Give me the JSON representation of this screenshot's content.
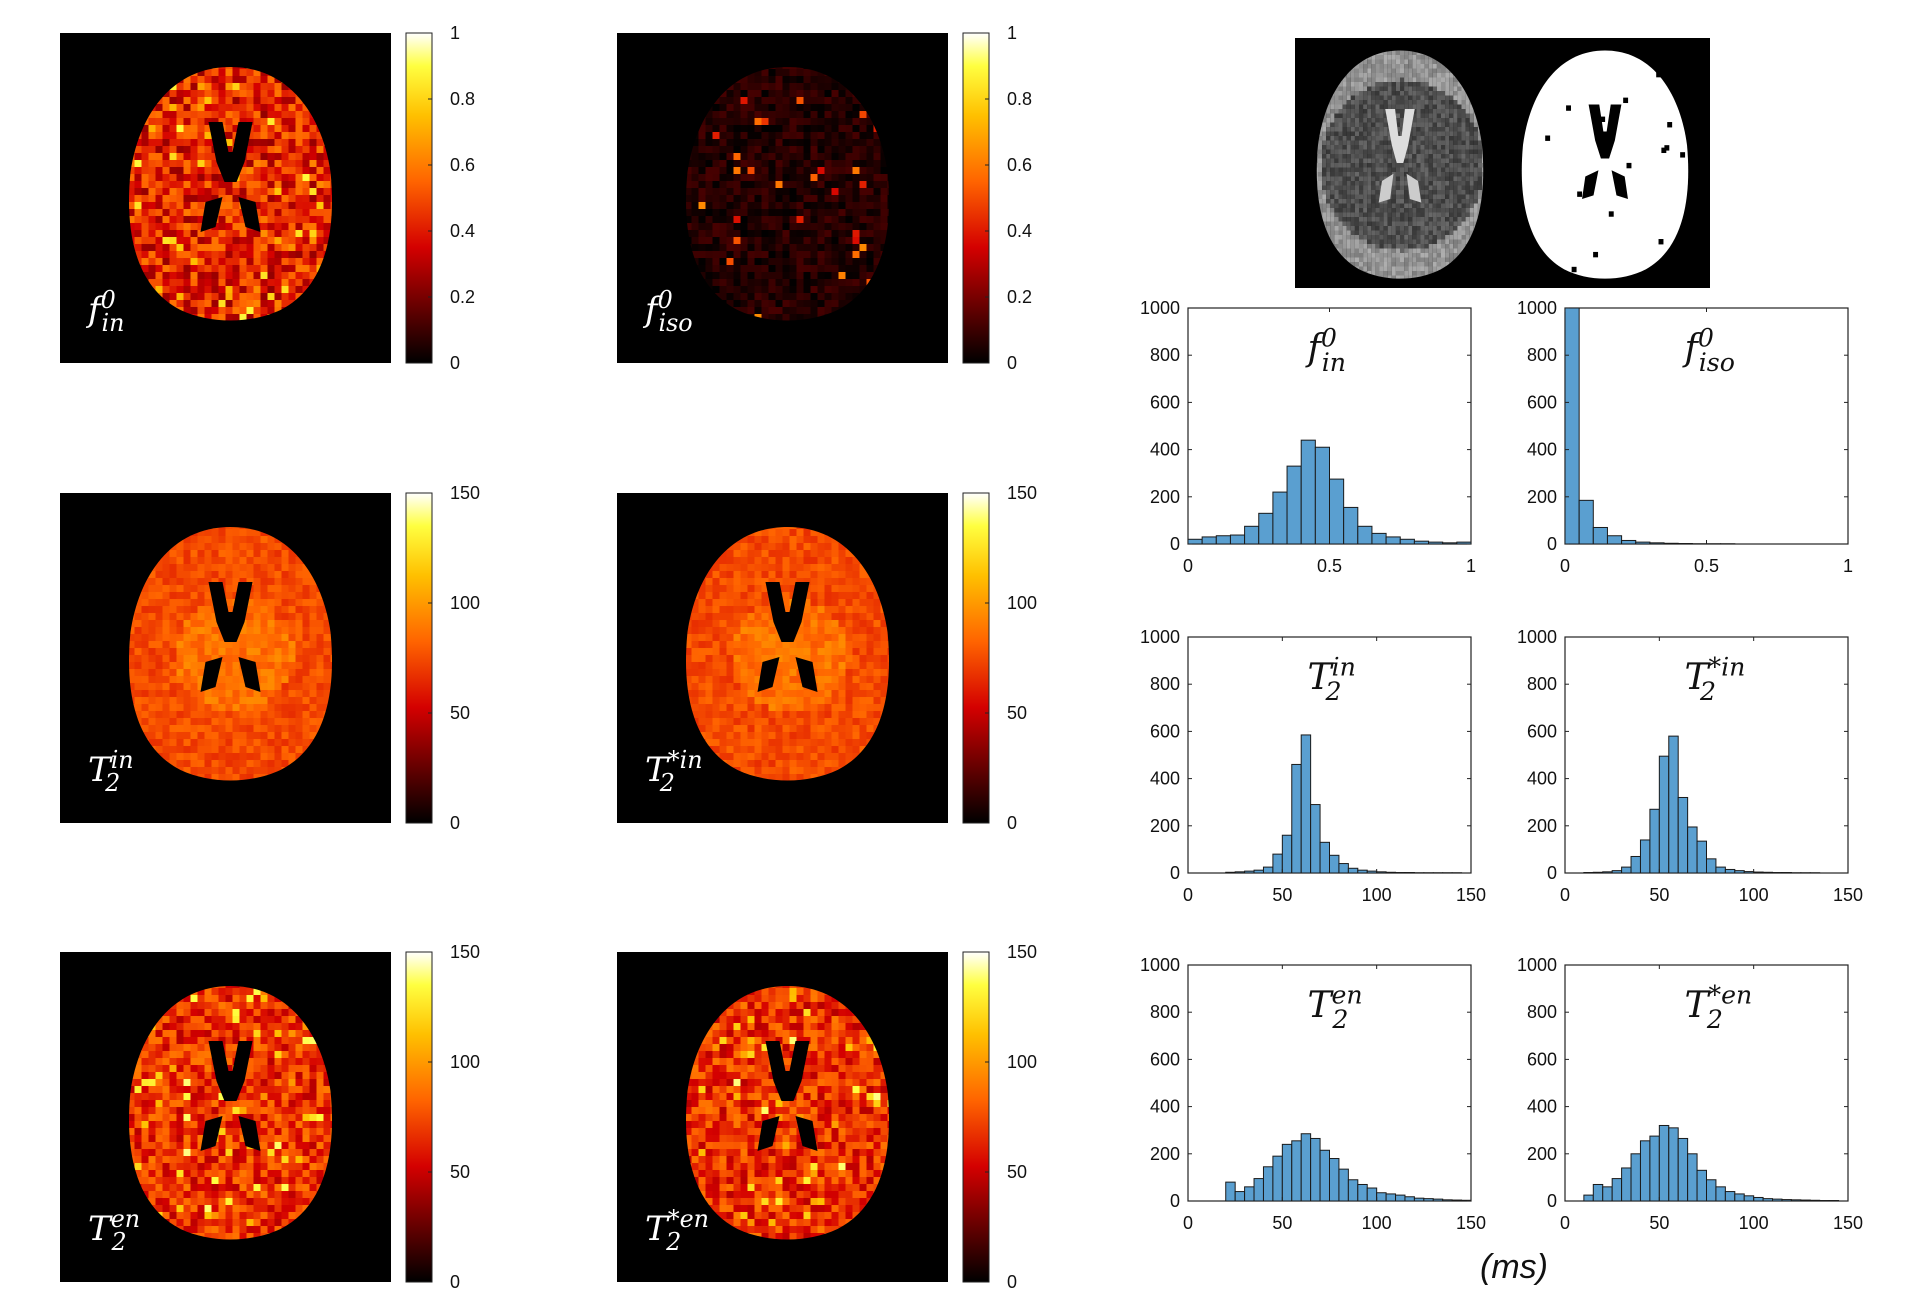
{
  "figure": {
    "colors": {
      "bar_fill": "#5a9fd0",
      "bar_edge": "#1a1a1a",
      "map_bg": "#000000",
      "label_text_on_map": "#ffffff"
    },
    "unit_label": "(ms)",
    "mask_panel": {
      "description_items": [
        "diffusion-weighted image",
        "brain mask"
      ]
    }
  },
  "maps": [
    {
      "id": "map-f-in",
      "label": {
        "base": "f",
        "sup": "0",
        "sub": "in"
      },
      "colorbar": {
        "ticks": [
          "0",
          "0.2",
          "0.4",
          "0.6",
          "0.8",
          "1"
        ],
        "range": [
          0,
          1
        ]
      },
      "variant": "f_in"
    },
    {
      "id": "map-f-iso",
      "label": {
        "base": "f",
        "sup": "0",
        "sub": "iso"
      },
      "colorbar": {
        "ticks": [
          "0",
          "0.2",
          "0.4",
          "0.6",
          "0.8",
          "1"
        ],
        "range": [
          0,
          1
        ]
      },
      "variant": "f_iso"
    },
    {
      "id": "map-t2-in",
      "label": {
        "base": "T",
        "sup": "in",
        "sub": "2"
      },
      "colorbar": {
        "ticks": [
          "0",
          "50",
          "100",
          "150"
        ],
        "range": [
          0,
          150
        ]
      },
      "variant": "t2_in"
    },
    {
      "id": "map-t2s-in",
      "label": {
        "base": "T",
        "sup": "*in",
        "sub": "2"
      },
      "colorbar": {
        "ticks": [
          "0",
          "50",
          "100",
          "150"
        ],
        "range": [
          0,
          150
        ]
      },
      "variant": "t2s_in"
    },
    {
      "id": "map-t2-en",
      "label": {
        "base": "T",
        "sup": "en",
        "sub": "2"
      },
      "colorbar": {
        "ticks": [
          "0",
          "50",
          "100",
          "150"
        ],
        "range": [
          0,
          150
        ]
      },
      "variant": "t2_en"
    },
    {
      "id": "map-t2s-en",
      "label": {
        "base": "T",
        "sup": "*en",
        "sub": "2"
      },
      "colorbar": {
        "ticks": [
          "0",
          "50",
          "100",
          "150"
        ],
        "range": [
          0,
          150
        ]
      },
      "variant": "t2s_en"
    }
  ],
  "chart_data": [
    {
      "type": "bar",
      "title": {
        "base": "f",
        "sup": "0",
        "sub": "in"
      },
      "xlim": [
        0,
        1
      ],
      "ylim": [
        0,
        1000
      ],
      "bin_width": 0.05,
      "xticks": [
        "0",
        "0.5",
        "1"
      ],
      "yticks": [
        "0",
        "200",
        "400",
        "600",
        "800",
        "1000"
      ],
      "bin_start": 0,
      "values": [
        20,
        30,
        35,
        38,
        75,
        130,
        220,
        330,
        440,
        410,
        275,
        155,
        75,
        45,
        30,
        20,
        12,
        8,
        5,
        8
      ]
    },
    {
      "type": "bar",
      "title": {
        "base": "f",
        "sup": "0",
        "sub": "iso"
      },
      "xlim": [
        0,
        1
      ],
      "ylim": [
        0,
        1000
      ],
      "bin_width": 0.05,
      "xticks": [
        "0",
        "0.5",
        "1"
      ],
      "yticks": [
        "0",
        "200",
        "400",
        "600",
        "800",
        "1000"
      ],
      "bin_start": 0,
      "values": [
        1000,
        185,
        70,
        35,
        15,
        8,
        5,
        3,
        2,
        1,
        1,
        1,
        0,
        0,
        0,
        0,
        0,
        0,
        0,
        0
      ]
    },
    {
      "type": "bar",
      "title": {
        "base": "T",
        "sup": "in",
        "sub": "2"
      },
      "xlim": [
        0,
        150
      ],
      "ylim": [
        0,
        1000
      ],
      "bin_width": 5,
      "xticks": [
        "0",
        "50",
        "100",
        "150"
      ],
      "yticks": [
        "0",
        "200",
        "400",
        "600",
        "800",
        "1000"
      ],
      "bin_start": 20,
      "values": [
        3,
        5,
        8,
        12,
        25,
        80,
        160,
        460,
        585,
        290,
        130,
        75,
        40,
        20,
        12,
        8,
        5,
        3,
        2,
        2,
        1,
        1,
        1,
        1,
        1,
        0
      ]
    },
    {
      "type": "bar",
      "title": {
        "base": "T",
        "sup": "*in",
        "sub": "2"
      },
      "xlim": [
        0,
        150
      ],
      "ylim": [
        0,
        1000
      ],
      "bin_width": 5,
      "xticks": [
        "0",
        "50",
        "100",
        "150"
      ],
      "yticks": [
        "0",
        "200",
        "400",
        "600",
        "800",
        "1000"
      ],
      "bin_start": 10,
      "values": [
        2,
        3,
        5,
        10,
        25,
        70,
        140,
        270,
        495,
        580,
        320,
        195,
        135,
        60,
        25,
        15,
        10,
        6,
        4,
        3,
        2,
        2,
        1,
        1,
        1,
        0,
        0
      ]
    },
    {
      "type": "bar",
      "title": {
        "base": "T",
        "sup": "en",
        "sub": "2"
      },
      "xlim": [
        0,
        150
      ],
      "ylim": [
        0,
        1000
      ],
      "bin_width": 5,
      "xticks": [
        "0",
        "50",
        "100",
        "150"
      ],
      "yticks": [
        "0",
        "200",
        "400",
        "600",
        "800",
        "1000"
      ],
      "bin_start": 20,
      "values": [
        80,
        40,
        60,
        95,
        145,
        190,
        240,
        255,
        285,
        265,
        215,
        180,
        135,
        90,
        70,
        55,
        35,
        30,
        25,
        18,
        12,
        10,
        8,
        5,
        4,
        3
      ]
    },
    {
      "type": "bar",
      "title": {
        "base": "T",
        "sup": "*en",
        "sub": "2"
      },
      "xlim": [
        0,
        150
      ],
      "ylim": [
        0,
        1000
      ],
      "bin_width": 5,
      "xticks": [
        "0",
        "50",
        "100",
        "150"
      ],
      "yticks": [
        "0",
        "200",
        "400",
        "600",
        "800",
        "1000"
      ],
      "bin_start": 10,
      "values": [
        25,
        70,
        60,
        95,
        140,
        200,
        255,
        275,
        320,
        310,
        265,
        200,
        130,
        90,
        60,
        40,
        30,
        22,
        15,
        10,
        8,
        6,
        5,
        4,
        3,
        2,
        2
      ]
    }
  ]
}
